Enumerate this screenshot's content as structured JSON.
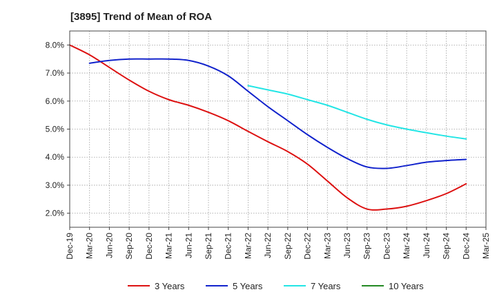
{
  "chart_data": {
    "type": "line",
    "title": "[3895]  Trend of Mean of ROA",
    "xlabel": "",
    "ylabel": "",
    "ylim": [
      1.5,
      8.5
    ],
    "yticks": [
      2.0,
      3.0,
      4.0,
      5.0,
      6.0,
      7.0,
      8.0
    ],
    "ytick_labels": [
      "2.0%",
      "3.0%",
      "4.0%",
      "5.0%",
      "6.0%",
      "7.0%",
      "8.0%"
    ],
    "categories": [
      "Dec-19",
      "Mar-20",
      "Jun-20",
      "Sep-20",
      "Dec-20",
      "Mar-21",
      "Jun-21",
      "Sep-21",
      "Dec-21",
      "Mar-22",
      "Jun-22",
      "Sep-22",
      "Dec-22",
      "Mar-23",
      "Jun-23",
      "Sep-23",
      "Dec-23",
      "Mar-24",
      "Jun-24",
      "Sep-24",
      "Dec-24",
      "Mar-25"
    ],
    "grid": true,
    "legend_position": "bottom",
    "series": [
      {
        "name": "3 Years",
        "color": "#dd1111",
        "values": [
          8.0,
          7.65,
          7.2,
          6.75,
          6.35,
          6.05,
          5.85,
          5.6,
          5.3,
          4.92,
          4.55,
          4.2,
          3.75,
          3.15,
          2.55,
          2.15,
          2.15,
          2.25,
          2.45,
          2.7,
          3.05,
          null
        ]
      },
      {
        "name": "5 Years",
        "color": "#1122cc",
        "values": [
          null,
          7.35,
          7.45,
          7.5,
          7.5,
          7.5,
          7.45,
          7.25,
          6.9,
          6.35,
          5.8,
          5.3,
          4.8,
          4.35,
          3.95,
          3.65,
          3.6,
          3.7,
          3.82,
          3.88,
          3.92,
          null
        ]
      },
      {
        "name": "7 Years",
        "color": "#22e5e5",
        "values": [
          null,
          null,
          null,
          null,
          null,
          null,
          null,
          null,
          null,
          6.55,
          6.4,
          6.25,
          6.05,
          5.85,
          5.6,
          5.35,
          5.15,
          5.0,
          4.87,
          4.75,
          4.65,
          null
        ]
      },
      {
        "name": "10 Years",
        "color": "#228822",
        "values": [
          null,
          null,
          null,
          null,
          null,
          null,
          null,
          null,
          null,
          null,
          null,
          null,
          null,
          null,
          null,
          null,
          null,
          null,
          null,
          null,
          null,
          null
        ]
      }
    ]
  }
}
